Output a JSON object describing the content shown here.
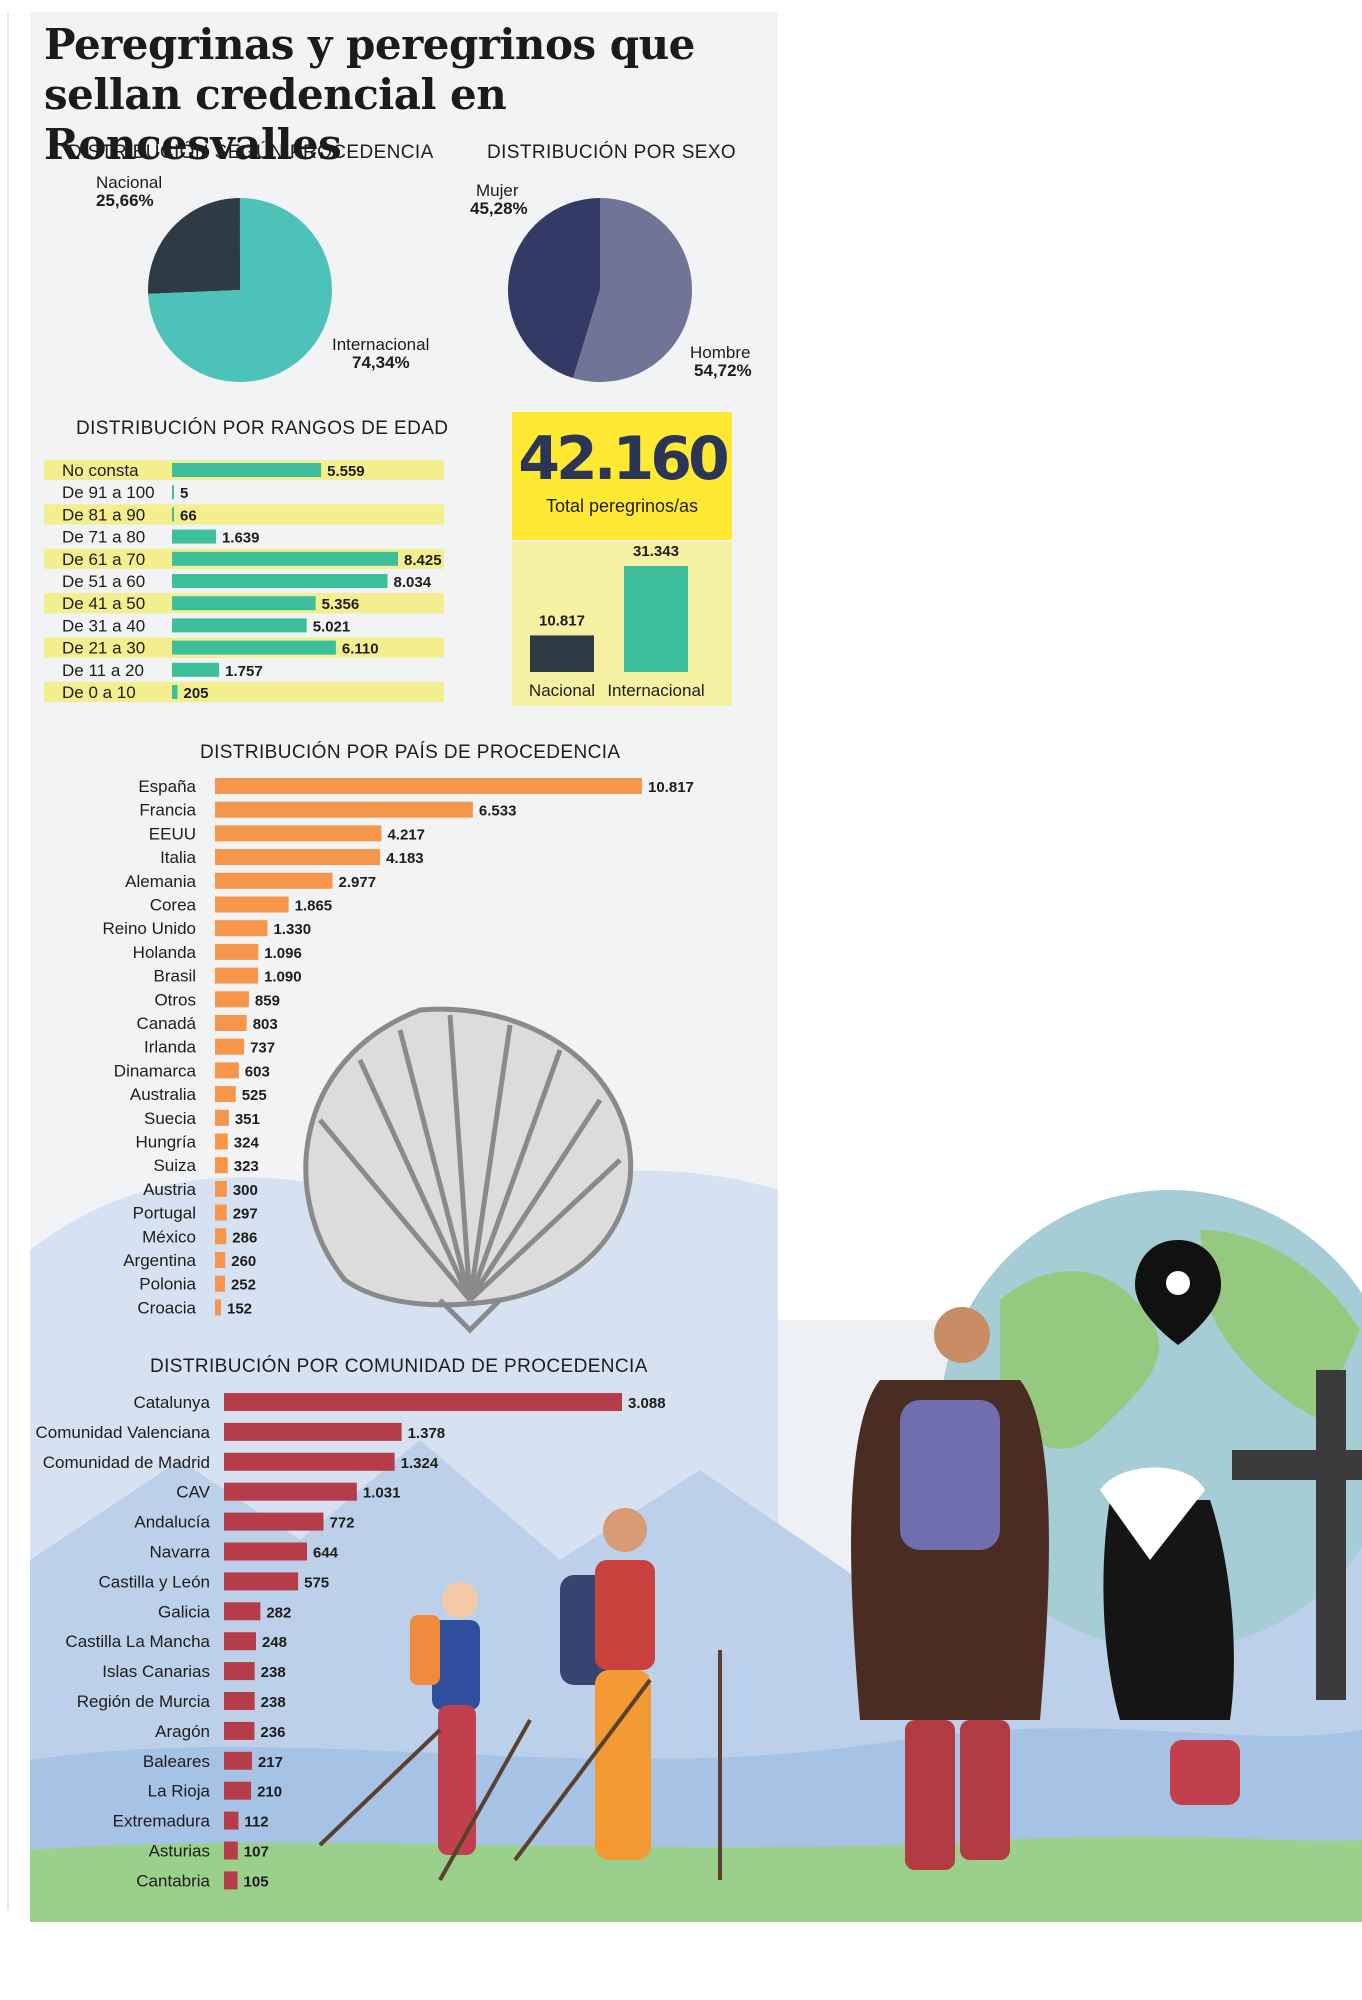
{
  "title": "Peregrinas y peregrinos que sellan credencial en Roncesvalles",
  "colors": {
    "teal": "#4cc2b8",
    "dark_slate": "#2f3b44",
    "navy": "#343a66",
    "slate_blue": "#707497",
    "green_bar": "#3cbf9a",
    "orange_bar": "#f6964b",
    "red_bar": "#b53d4a",
    "yellow_box": "#ffe933",
    "yellow_row": "#f4ef8e"
  },
  "total": {
    "value": "42.160",
    "label": "Total peregrinos/as"
  },
  "chart_data": [
    {
      "id": "procedencia",
      "type": "pie",
      "title": "DISTRIBUCIÓN SEGÚN PROCEDENCIA",
      "slices": [
        {
          "name": "Nacional",
          "value": 25.66,
          "label": "25,66%"
        },
        {
          "name": "Internacional",
          "value": 74.34,
          "label": "74,34%"
        }
      ]
    },
    {
      "id": "sexo",
      "type": "pie",
      "title": "DISTRIBUCIÓN POR SEXO",
      "slices": [
        {
          "name": "Mujer",
          "value": 45.28,
          "label": "45,28%"
        },
        {
          "name": "Hombre",
          "value": 54.72,
          "label": "54,72%"
        }
      ]
    },
    {
      "id": "edad",
      "type": "bar",
      "orientation": "horizontal",
      "title": "DISTRIBUCIÓN POR RANGOS DE EDAD",
      "categories": [
        "No consta",
        "De 91 a 100",
        "De 81 a 90",
        "De 71 a 80",
        "De 61 a 70",
        "De 51 a 60",
        "De 41 a 50",
        "De 31 a 40",
        "De 21 a 30",
        "De 11 a 20",
        "De 0 a 10"
      ],
      "values": [
        5559,
        5,
        66,
        1639,
        8425,
        8034,
        5356,
        5021,
        6110,
        1757,
        205
      ],
      "labels": [
        "5.559",
        "5",
        "66",
        "1.639",
        "8.425",
        "8.034",
        "5.356",
        "5.021",
        "6.110",
        "1.757",
        "205"
      ]
    },
    {
      "id": "total",
      "type": "bar",
      "categories": [
        "Nacional",
        "Internacional"
      ],
      "values": [
        10817,
        31343
      ],
      "labels": [
        "10.817",
        "31.343"
      ]
    },
    {
      "id": "pais",
      "type": "bar",
      "orientation": "horizontal",
      "title": "DISTRIBUCIÓN POR PAÍS DE PROCEDENCIA",
      "categories": [
        "España",
        "Francia",
        "EEUU",
        "Italia",
        "Alemania",
        "Corea",
        "Reino Unido",
        "Holanda",
        "Brasil",
        "Otros",
        "Canadá",
        "Irlanda",
        "Dinamarca",
        "Australia",
        "Suecia",
        "Hungría",
        "Suiza",
        "Austria",
        "Portugal",
        "México",
        "Argentina",
        "Polonia",
        "Croacia"
      ],
      "values": [
        10817,
        6533,
        4217,
        4183,
        2977,
        1865,
        1330,
        1096,
        1090,
        859,
        803,
        737,
        603,
        525,
        351,
        324,
        323,
        300,
        297,
        286,
        260,
        252,
        152
      ],
      "labels": [
        "10.817",
        "6.533",
        "4.217",
        "4.183",
        "2.977",
        "1.865",
        "1.330",
        "1.096",
        "1.090",
        "859",
        "803",
        "737",
        "603",
        "525",
        "351",
        "324",
        "323",
        "300",
        "297",
        "286",
        "260",
        "252",
        "152"
      ]
    },
    {
      "id": "comunidad",
      "type": "bar",
      "orientation": "horizontal",
      "title": "DISTRIBUCIÓN POR COMUNIDAD DE PROCEDENCIA",
      "categories": [
        "Catalunya",
        "Comunidad Valenciana",
        "Comunidad de Madrid",
        "CAV",
        "Andalucía",
        "Navarra",
        "Castilla y León",
        "Galicia",
        "Castilla La Mancha",
        "Islas Canarias",
        "Región de Murcia",
        "Aragón",
        "Baleares",
        "La Rioja",
        "Extremadura",
        "Asturias",
        "Cantabria"
      ],
      "values": [
        3088,
        1378,
        1324,
        1031,
        772,
        644,
        575,
        282,
        248,
        238,
        238,
        236,
        217,
        210,
        112,
        107,
        105
      ],
      "labels": [
        "3.088",
        "1.378",
        "1.324",
        "1.031",
        "772",
        "644",
        "575",
        "282",
        "248",
        "238",
        "238",
        "236",
        "217",
        "210",
        "112",
        "107",
        "105"
      ]
    }
  ]
}
